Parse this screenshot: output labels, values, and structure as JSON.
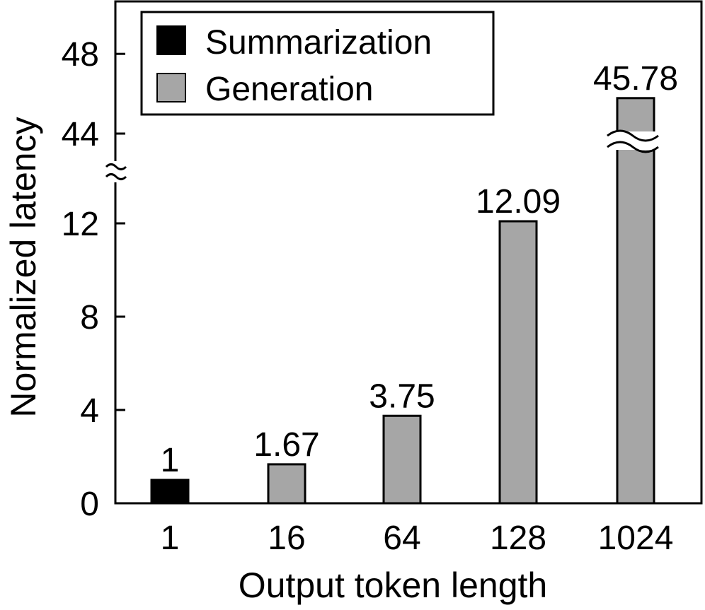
{
  "chart_data": {
    "type": "bar",
    "title": "",
    "xlabel": "Output token length",
    "ylabel": "Normalized latency",
    "categories": [
      "1",
      "16",
      "64",
      "128",
      "1024"
    ],
    "values": [
      1,
      1.67,
      3.75,
      12.09,
      45.78
    ],
    "value_labels": [
      "1",
      "1.67",
      "3.75",
      "12.09",
      "45.78"
    ],
    "series_of_bar": [
      "Summarization",
      "Generation",
      "Generation",
      "Generation",
      "Generation"
    ],
    "series": [
      {
        "name": "Summarization",
        "color": "#000000"
      },
      {
        "name": "Generation",
        "color": "#a6a6a6"
      }
    ],
    "y_ticks": [
      0,
      4,
      8,
      12,
      44,
      48
    ],
    "y_tick_labels": [
      "0",
      "4",
      "8",
      "12",
      "44",
      "48"
    ],
    "ylim": [
      0,
      50
    ],
    "axis_break": {
      "from": 14,
      "to": 43
    },
    "legend_position": "top-left",
    "grid": false
  }
}
